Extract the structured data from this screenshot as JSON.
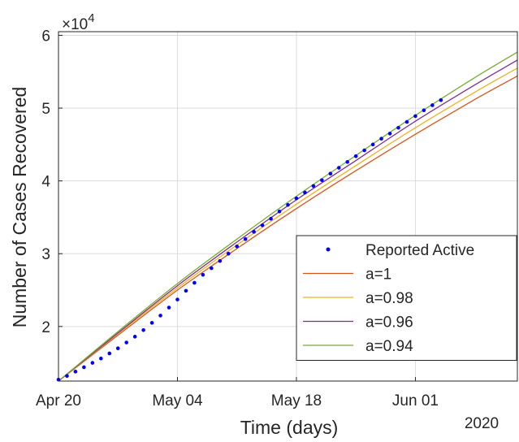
{
  "chart_data": {
    "type": "line",
    "xlabel": "Time (days)",
    "ylabel": "Number of Cases Recovered",
    "y_exponent_label": "×10",
    "y_exponent_power": "4",
    "year_label": "2020",
    "x_axis": {
      "start_date": "Apr 20",
      "end_date": "Jun 13",
      "ticks": [
        {
          "label": "Apr 20",
          "day": 0
        },
        {
          "label": "May 04",
          "day": 14
        },
        {
          "label": "May 18",
          "day": 28
        },
        {
          "label": "Jun 01",
          "day": 42
        }
      ],
      "range_days": [
        0,
        54
      ]
    },
    "y_axis": {
      "ylim": [
        12500,
        60500
      ],
      "ticks": [
        {
          "label": "2",
          "value": 20000
        },
        {
          "label": "3",
          "value": 30000
        },
        {
          "label": "4",
          "value": 40000
        },
        {
          "label": "5",
          "value": 50000
        },
        {
          "label": "6",
          "value": 60000
        }
      ]
    },
    "grid": true,
    "legend_position": "bottom-right",
    "series": [
      {
        "name": "Reported Active",
        "style": "markers",
        "color": "#0000ff",
        "points": [
          [
            0,
            12700
          ],
          [
            1,
            13200
          ],
          [
            2,
            13800
          ],
          [
            3,
            14400
          ],
          [
            4,
            15000
          ],
          [
            5,
            15600
          ],
          [
            6,
            16300
          ],
          [
            7,
            17000
          ],
          [
            8,
            17800
          ],
          [
            9,
            18600
          ],
          [
            10,
            19500
          ],
          [
            11,
            20500
          ],
          [
            12,
            21500
          ],
          [
            13,
            22600
          ],
          [
            14,
            23700
          ],
          [
            15,
            24900
          ],
          [
            16,
            26000
          ],
          [
            17,
            27100
          ],
          [
            18,
            28000
          ],
          [
            19,
            29000
          ],
          [
            20,
            30000
          ],
          [
            21,
            31000
          ],
          [
            22,
            32000
          ],
          [
            23,
            33000
          ],
          [
            24,
            33900
          ],
          [
            25,
            34800
          ],
          [
            26,
            35800
          ],
          [
            27,
            36700
          ],
          [
            28,
            37600
          ],
          [
            29,
            38400
          ],
          [
            30,
            39300
          ],
          [
            31,
            40100
          ],
          [
            32,
            41000
          ],
          [
            33,
            41800
          ],
          [
            34,
            42600
          ],
          [
            35,
            43400
          ],
          [
            36,
            44200
          ],
          [
            37,
            45000
          ],
          [
            38,
            45800
          ],
          [
            39,
            46500
          ],
          [
            40,
            47300
          ],
          [
            41,
            48100
          ],
          [
            42,
            48900
          ],
          [
            43,
            49700
          ],
          [
            44,
            50400
          ],
          [
            45,
            51100
          ]
        ]
      },
      {
        "name": "a=1",
        "style": "line",
        "color": "#d95319",
        "points": [
          [
            0,
            12500
          ],
          [
            7,
            18800
          ],
          [
            14,
            25000
          ],
          [
            21,
            30700
          ],
          [
            28,
            36200
          ],
          [
            35,
            41400
          ],
          [
            42,
            46400
          ],
          [
            49,
            51200
          ],
          [
            54,
            54400
          ]
        ]
      },
      {
        "name": "a=0.98",
        "style": "line",
        "color": "#edb120",
        "points": [
          [
            0,
            12500
          ],
          [
            7,
            19000
          ],
          [
            14,
            25300
          ],
          [
            21,
            31200
          ],
          [
            28,
            36800
          ],
          [
            35,
            42100
          ],
          [
            42,
            47300
          ],
          [
            49,
            52200
          ],
          [
            54,
            55500
          ]
        ]
      },
      {
        "name": "a=0.96",
        "style": "line",
        "color": "#7e2f8e",
        "points": [
          [
            0,
            12500
          ],
          [
            7,
            19100
          ],
          [
            14,
            25600
          ],
          [
            21,
            31600
          ],
          [
            28,
            37400
          ],
          [
            35,
            42800
          ],
          [
            42,
            48200
          ],
          [
            49,
            53200
          ],
          [
            54,
            56600
          ]
        ]
      },
      {
        "name": "a=0.94",
        "style": "line",
        "color": "#77ac30",
        "points": [
          [
            0,
            12500
          ],
          [
            7,
            19300
          ],
          [
            14,
            25900
          ],
          [
            21,
            32000
          ],
          [
            28,
            37900
          ],
          [
            35,
            43500
          ],
          [
            42,
            49000
          ],
          [
            49,
            54200
          ],
          [
            54,
            57700
          ]
        ]
      }
    ]
  }
}
